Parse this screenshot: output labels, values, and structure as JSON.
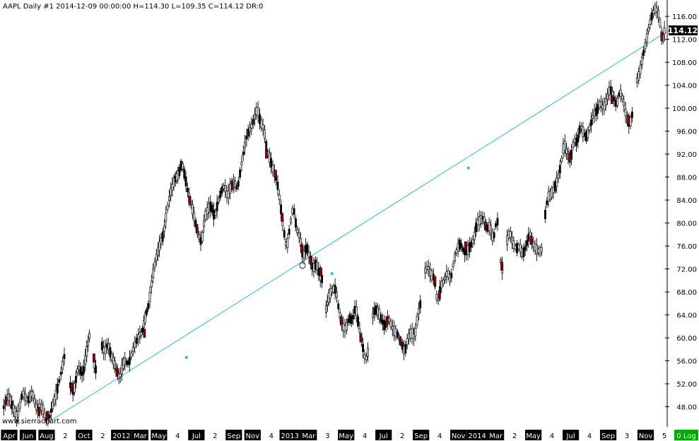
{
  "header": {
    "text": "AAPL  Daily  #1 2014-12-09 00:00:00 H=114.30 L=109.35 C=114.12 DR:0"
  },
  "watermark": "www.sierrachart.com",
  "log_button": "0 Log",
  "colors": {
    "up": "#ffffff",
    "down": "#8b0000",
    "outline": "#000000",
    "trendline": "#22bde0",
    "axis_label_bg": "#000000",
    "axis_label_fg": "#ffffff",
    "last_price_bg": "#000000",
    "log_bg": "#00aa00"
  },
  "chart_data": {
    "type": "line",
    "symbol": "AAPL",
    "interval": "Daily",
    "y_scale": "linear",
    "ylim": [
      44.5,
      118.6
    ],
    "y_ticks": [
      "116.00",
      "112.00",
      "108.00",
      "104.00",
      "100.00",
      "96.00",
      "92.00",
      "88.00",
      "84.00",
      "80.00",
      "76.00",
      "72.00",
      "68.00",
      "64.00",
      "60.00",
      "56.00",
      "52.00",
      "48.00"
    ],
    "last_price": "114.12",
    "x_ticks": [
      {
        "label": "Apr",
        "inverted": true
      },
      {
        "label": "Jun",
        "inverted": true
      },
      {
        "label": "Aug",
        "inverted": true
      },
      {
        "label": "2",
        "inverted": false
      },
      {
        "label": "Oct",
        "inverted": true
      },
      {
        "label": "2",
        "inverted": false
      },
      {
        "label": "2012",
        "inverted": true
      },
      {
        "label": "Mar",
        "inverted": true
      },
      {
        "label": "May",
        "inverted": true
      },
      {
        "label": "4",
        "inverted": false
      },
      {
        "label": "Jul",
        "inverted": true
      },
      {
        "label": "2",
        "inverted": false
      },
      {
        "label": "Sep",
        "inverted": true
      },
      {
        "label": "Nov",
        "inverted": true
      },
      {
        "label": "4",
        "inverted": false
      },
      {
        "label": "2013",
        "inverted": true
      },
      {
        "label": "Mar",
        "inverted": true
      },
      {
        "label": "3",
        "inverted": false
      },
      {
        "label": "May",
        "inverted": true
      },
      {
        "label": "4",
        "inverted": false
      },
      {
        "label": "Jul",
        "inverted": true
      },
      {
        "label": "2",
        "inverted": false
      },
      {
        "label": "Sep",
        "inverted": true
      },
      {
        "label": "4",
        "inverted": false
      },
      {
        "label": "Nov",
        "inverted": true
      },
      {
        "label": "2014",
        "inverted": true
      },
      {
        "label": "Mar",
        "inverted": true
      },
      {
        "label": "2",
        "inverted": false
      },
      {
        "label": "May",
        "inverted": true
      },
      {
        "label": "4",
        "inverted": false
      },
      {
        "label": "Jul",
        "inverted": true
      },
      {
        "label": "4",
        "inverted": false
      },
      {
        "label": "Sep",
        "inverted": true
      },
      {
        "label": "3",
        "inverted": false
      },
      {
        "label": "Nov",
        "inverted": true
      },
      {
        "label": "5",
        "inverted": false
      }
    ],
    "series": [
      {
        "close_path": [
          [
            0.0,
            47.5
          ],
          [
            0.8,
            50.0
          ],
          [
            1.5,
            48.0
          ],
          [
            2.2,
            46.0
          ],
          [
            3.0,
            50.5
          ],
          [
            3.8,
            49.0
          ],
          [
            4.5,
            50.5
          ],
          [
            5.2,
            47.5
          ],
          [
            6.0,
            48.0
          ],
          [
            6.5,
            46.0
          ],
          [
            7.0,
            45.8
          ],
          [
            7.5,
            47.8
          ],
          [
            8.2,
            50.5
          ],
          [
            9.0,
            54.5
          ],
          [
            9.5,
            57.5
          ],
          [
            10.2,
            52.0
          ],
          [
            10.8,
            50.5
          ],
          [
            11.5,
            55.0
          ],
          [
            12.2,
            53.5
          ],
          [
            12.7,
            57.0
          ],
          [
            13.3,
            61.0
          ],
          [
            13.8,
            56.0
          ],
          [
            14.3,
            54.0
          ],
          [
            15.0,
            59.0
          ],
          [
            15.5,
            57.5
          ],
          [
            16.0,
            59.0
          ],
          [
            16.5,
            57.0
          ],
          [
            17.2,
            55.0
          ],
          [
            17.8,
            53.0
          ],
          [
            18.5,
            56.0
          ],
          [
            19.2,
            55.5
          ],
          [
            20.0,
            58.5
          ],
          [
            20.8,
            60.5
          ],
          [
            21.2,
            60.8
          ],
          [
            21.8,
            64.0
          ],
          [
            22.3,
            66.0
          ],
          [
            22.8,
            70.5
          ],
          [
            23.3,
            73.5
          ],
          [
            24.0,
            76.5
          ],
          [
            24.5,
            78.0
          ],
          [
            25.0,
            82.0
          ],
          [
            25.5,
            85.0
          ],
          [
            26.2,
            87.5
          ],
          [
            26.8,
            88.5
          ],
          [
            27.3,
            90.5
          ],
          [
            27.8,
            88.0
          ],
          [
            28.3,
            85.0
          ],
          [
            28.8,
            83.0
          ],
          [
            29.3,
            80.5
          ],
          [
            29.8,
            78.0
          ],
          [
            30.3,
            76.5
          ],
          [
            30.8,
            81.0
          ],
          [
            31.3,
            82.5
          ],
          [
            31.8,
            83.0
          ],
          [
            32.3,
            81.0
          ],
          [
            32.8,
            83.5
          ],
          [
            33.3,
            85.5
          ],
          [
            33.8,
            86.5
          ],
          [
            34.3,
            84.5
          ],
          [
            34.8,
            86.5
          ],
          [
            35.3,
            87.0
          ],
          [
            35.8,
            86.0
          ],
          [
            36.3,
            89.5
          ],
          [
            36.8,
            93.0
          ],
          [
            37.3,
            95.5
          ],
          [
            37.8,
            96.5
          ],
          [
            38.3,
            98.0
          ],
          [
            38.8,
            100.0
          ],
          [
            39.3,
            97.5
          ],
          [
            39.8,
            96.5
          ],
          [
            40.3,
            92.5
          ],
          [
            40.8,
            91.0
          ],
          [
            41.3,
            89.0
          ],
          [
            41.8,
            87.5
          ],
          [
            42.3,
            83.5
          ],
          [
            42.8,
            79.0
          ],
          [
            43.3,
            75.5
          ],
          [
            43.8,
            79.5
          ],
          [
            44.3,
            83.0
          ],
          [
            44.8,
            79.0
          ],
          [
            45.3,
            77.5
          ],
          [
            45.8,
            74.0
          ],
          [
            46.3,
            76.0
          ],
          [
            46.8,
            74.0
          ],
          [
            47.3,
            72.0
          ],
          [
            47.8,
            73.0
          ],
          [
            48.3,
            71.0
          ],
          [
            48.8,
            70.0
          ],
          [
            49.2,
            64.5
          ],
          [
            49.8,
            67.5
          ],
          [
            50.3,
            68.5
          ],
          [
            50.8,
            68.5
          ],
          [
            51.3,
            64.5
          ],
          [
            51.8,
            62.0
          ],
          [
            52.3,
            61.5
          ],
          [
            52.8,
            63.5
          ],
          [
            53.3,
            63.0
          ],
          [
            53.8,
            65.5
          ],
          [
            54.3,
            62.0
          ],
          [
            54.8,
            59.0
          ],
          [
            55.3,
            56.0
          ],
          [
            55.8,
            58.0
          ],
          [
            56.3,
            63.5
          ],
          [
            56.8,
            65.0
          ],
          [
            57.3,
            64.5
          ],
          [
            57.8,
            63.0
          ],
          [
            58.3,
            62.0
          ],
          [
            58.8,
            63.5
          ],
          [
            59.3,
            62.0
          ],
          [
            59.8,
            61.0
          ],
          [
            60.3,
            60.5
          ],
          [
            60.8,
            59.0
          ],
          [
            61.3,
            57.5
          ],
          [
            61.8,
            60.0
          ],
          [
            62.3,
            61.0
          ],
          [
            62.8,
            60.0
          ],
          [
            63.3,
            64.0
          ],
          [
            63.8,
            66.5
          ],
          [
            64.3,
            71.5
          ],
          [
            64.8,
            72.5
          ],
          [
            65.3,
            71.0
          ],
          [
            65.8,
            70.5
          ],
          [
            66.3,
            66.0
          ],
          [
            66.8,
            69.0
          ],
          [
            67.3,
            70.0
          ],
          [
            67.8,
            71.5
          ],
          [
            68.3,
            70.0
          ],
          [
            68.8,
            73.5
          ],
          [
            69.3,
            75.5
          ],
          [
            69.8,
            76.5
          ],
          [
            70.3,
            75.0
          ],
          [
            70.8,
            75.0
          ],
          [
            71.3,
            76.0
          ],
          [
            71.8,
            77.0
          ],
          [
            72.3,
            80.0
          ],
          [
            72.8,
            80.5
          ],
          [
            73.3,
            81.0
          ],
          [
            73.8,
            79.0
          ],
          [
            74.3,
            79.5
          ],
          [
            74.8,
            77.0
          ],
          [
            75.3,
            80.5
          ],
          [
            75.6,
            80.0
          ],
          [
            75.8,
            74.0
          ],
          [
            76.3,
            71.5
          ],
          [
            76.8,
            76.5
          ],
          [
            77.3,
            78.5
          ],
          [
            77.8,
            76.5
          ],
          [
            78.3,
            75.5
          ],
          [
            78.8,
            76.0
          ],
          [
            79.3,
            74.5
          ],
          [
            79.8,
            76.0
          ],
          [
            80.3,
            78.0
          ],
          [
            80.8,
            76.5
          ],
          [
            81.3,
            75.5
          ],
          [
            81.8,
            75.0
          ],
          [
            82.3,
            75.5
          ],
          [
            82.6,
            80.5
          ],
          [
            83.1,
            84.5
          ],
          [
            83.6,
            85.0
          ],
          [
            84.1,
            86.0
          ],
          [
            84.6,
            87.5
          ],
          [
            85.1,
            90.0
          ],
          [
            85.6,
            94.0
          ],
          [
            86.1,
            92.0
          ],
          [
            86.6,
            91.0
          ],
          [
            87.1,
            94.5
          ],
          [
            87.6,
            94.0
          ],
          [
            88.1,
            97.0
          ],
          [
            88.6,
            95.5
          ],
          [
            89.1,
            95.0
          ],
          [
            89.6,
            97.0
          ],
          [
            90.1,
            99.0
          ],
          [
            90.6,
            99.5
          ],
          [
            91.1,
            101.0
          ],
          [
            91.6,
            100.0
          ],
          [
            92.1,
            101.5
          ],
          [
            92.6,
            103.5
          ],
          [
            93.1,
            102.0
          ],
          [
            93.6,
            100.5
          ],
          [
            94.1,
            103.0
          ],
          [
            94.6,
            101.5
          ],
          [
            95.1,
            98.5
          ],
          [
            95.6,
            97.0
          ],
          [
            96.1,
            99.5
          ],
          [
            96.6,
            104.5
          ],
          [
            97.1,
            106.0
          ],
          [
            97.6,
            109.0
          ],
          [
            98.1,
            111.5
          ],
          [
            98.6,
            114.5
          ],
          [
            99.1,
            116.5
          ],
          [
            99.6,
            117.5
          ],
          [
            100.1,
            116.0
          ],
          [
            100.6,
            111.5
          ],
          [
            101.0,
            114.12
          ]
        ]
      }
    ],
    "down_marks": [
      [
        0.5,
        49.0
      ],
      [
        5.5,
        47.2
      ],
      [
        6.8,
        46.5
      ],
      [
        10.5,
        51.5
      ],
      [
        13.9,
        56.5
      ],
      [
        17.4,
        54.0
      ],
      [
        21.6,
        60.8
      ],
      [
        28.5,
        84.0
      ],
      [
        29.6,
        79.0
      ],
      [
        35.0,
        86.5
      ],
      [
        40.2,
        92.0
      ],
      [
        41.6,
        88.5
      ],
      [
        42.6,
        81.0
      ],
      [
        45.6,
        75.5
      ],
      [
        47.0,
        73.5
      ],
      [
        48.5,
        71.5
      ],
      [
        51.6,
        63.0
      ],
      [
        54.6,
        60.0
      ],
      [
        58.6,
        63.0
      ],
      [
        60.6,
        59.5
      ],
      [
        65.9,
        70.0
      ],
      [
        66.6,
        67.5
      ],
      [
        70.6,
        76.0
      ],
      [
        73.6,
        79.5
      ],
      [
        76.1,
        72.5
      ],
      [
        80.6,
        77.0
      ],
      [
        86.4,
        91.5
      ],
      [
        92.9,
        101.5
      ],
      [
        95.4,
        98.0
      ],
      [
        100.5,
        112.5
      ]
    ],
    "trendline": {
      "points": [
        [
          7.3,
          45.6
        ],
        [
          101.2,
          113.3
        ]
      ],
      "markers": [
        [
          28.0,
          56.6
        ],
        [
          50.2,
          71.2
        ],
        [
          71.0,
          89.6
        ]
      ]
    },
    "pivot_marker": [
      45.7,
      72.6
    ]
  }
}
